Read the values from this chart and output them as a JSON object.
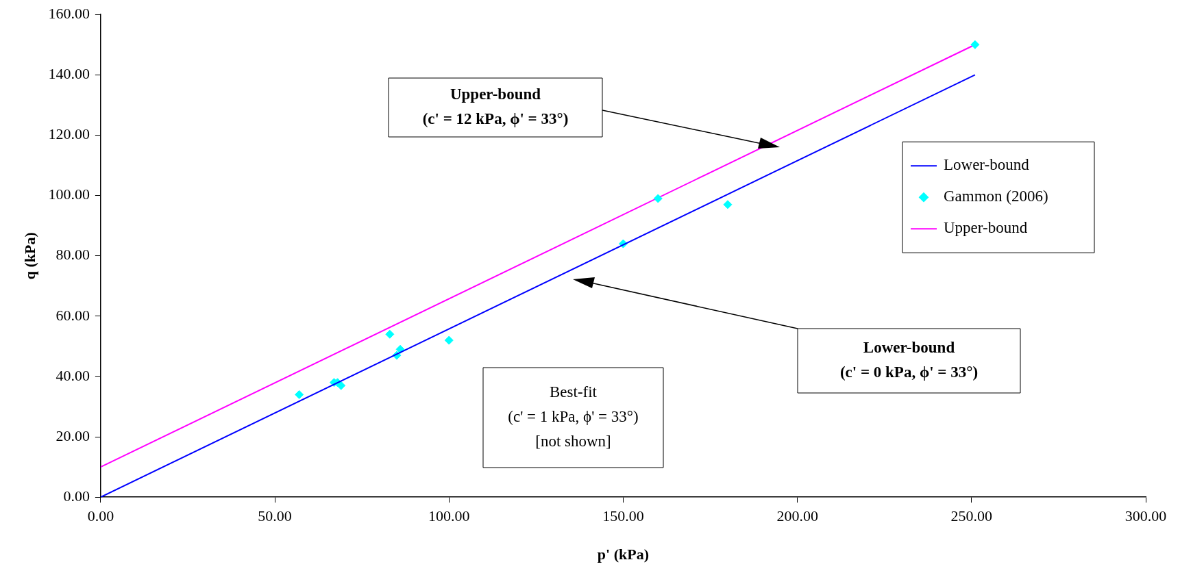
{
  "chart_data": {
    "type": "scatter",
    "xlabel": "p' (kPa)",
    "ylabel": "q (kPa)",
    "xlim": [
      0,
      300
    ],
    "ylim": [
      0,
      160
    ],
    "xticks": [
      {
        "value": 0,
        "label": "0.00"
      },
      {
        "value": 50,
        "label": "50.00"
      },
      {
        "value": 100,
        "label": "100.00"
      },
      {
        "value": 150,
        "label": "150.00"
      },
      {
        "value": 200,
        "label": "200.00"
      },
      {
        "value": 250,
        "label": "250.00"
      },
      {
        "value": 300,
        "label": "300.00"
      }
    ],
    "yticks": [
      {
        "value": 0,
        "label": "0.00"
      },
      {
        "value": 20,
        "label": "20.00"
      },
      {
        "value": 40,
        "label": "40.00"
      },
      {
        "value": 60,
        "label": "60.00"
      },
      {
        "value": 80,
        "label": "80.00"
      },
      {
        "value": 100,
        "label": "100.00"
      },
      {
        "value": 120,
        "label": "120.00"
      },
      {
        "value": 140,
        "label": "140.00"
      },
      {
        "value": 160,
        "label": "160.00"
      }
    ],
    "grid": false,
    "legend": "right",
    "series": [
      {
        "name": "Lower-bound",
        "type": "line",
        "color": "#0000ff",
        "marker": "none",
        "x": [
          0,
          251
        ],
        "values": [
          0,
          140
        ]
      },
      {
        "name": "Gammon (2006)",
        "type": "scatter",
        "color": "#00ffff",
        "marker": "diamond",
        "x": [
          57,
          67,
          68,
          69,
          83,
          85,
          86,
          100,
          150,
          160,
          180,
          251
        ],
        "values": [
          34,
          38,
          38,
          37,
          54,
          47,
          49,
          52,
          84,
          99,
          97,
          150
        ]
      },
      {
        "name": "Upper-bound",
        "type": "line",
        "color": "#ff00ff",
        "marker": "none",
        "x": [
          0,
          251
        ],
        "values": [
          10,
          150
        ]
      }
    ],
    "annotations": [
      "Upper-bound\n(c' = 12 kPa, ϕ' = 33°)",
      "Lower-bound\n(c' = 0 kPa, ϕ' = 33°)",
      "Best-fit\n(c' = 1 kPa, ϕ' = 33°)\n[not shown]"
    ]
  }
}
